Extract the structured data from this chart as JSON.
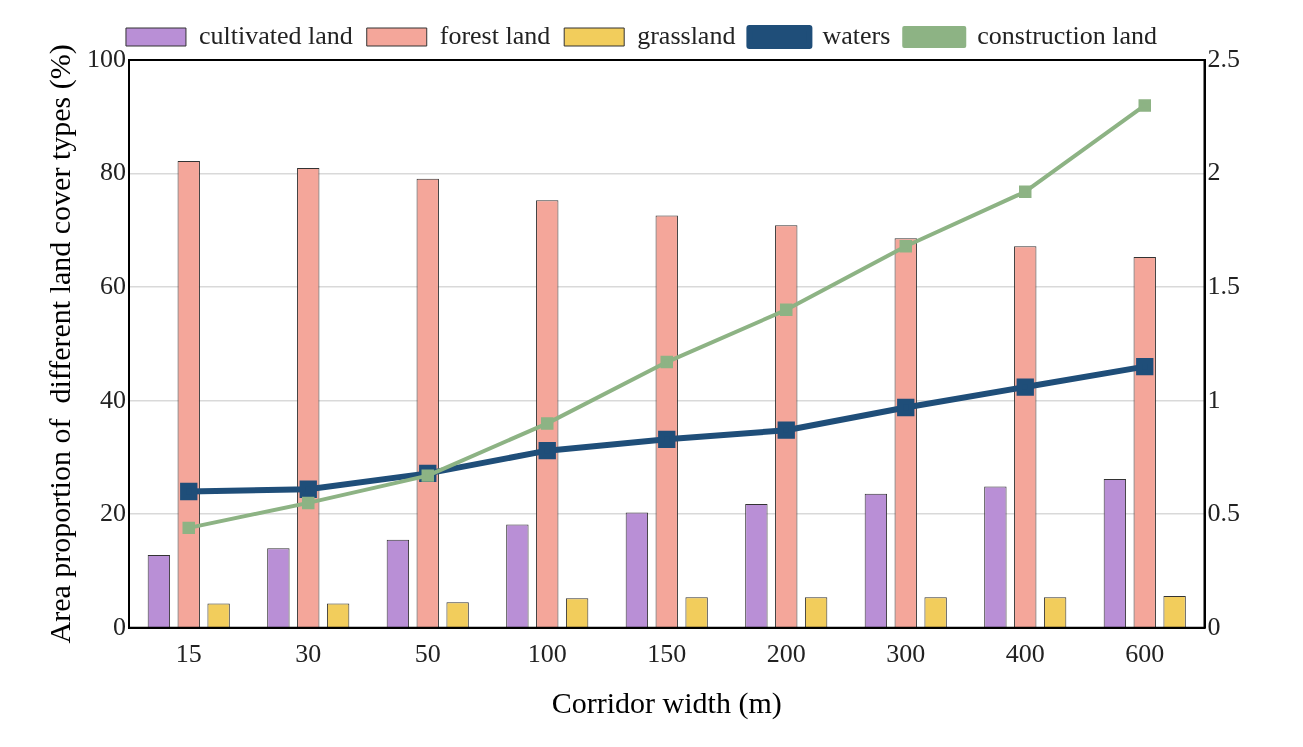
{
  "chart_data": {
    "type": "bar",
    "xlabel": "Corridor width (m)",
    "ylabel": "Area proportion of  different land cover types (%)",
    "categories": [
      "15",
      "30",
      "50",
      "100",
      "150",
      "200",
      "300",
      "400",
      "600"
    ],
    "series": [
      {
        "name": "cultivated land",
        "color": "#b98fd6",
        "values": [
          12.8,
          14.0,
          15.5,
          18.2,
          20.3,
          21.8,
          23.6,
          24.9,
          26.2
        ]
      },
      {
        "name": "forest land",
        "color": "#f4a69a",
        "values": [
          82.2,
          81.0,
          79.1,
          75.3,
          72.6,
          70.9,
          68.6,
          67.2,
          65.3
        ]
      },
      {
        "name": "grassland",
        "color": "#f2cd5c",
        "values": [
          4.3,
          4.3,
          4.5,
          5.2,
          5.4,
          5.4,
          5.4,
          5.4,
          5.6
        ]
      },
      {
        "name": "waters",
        "type": "line",
        "axis": "y2",
        "color": "#1f4e79",
        "values": [
          0.6,
          0.61,
          0.68,
          0.78,
          0.83,
          0.87,
          0.97,
          1.06,
          1.15
        ]
      },
      {
        "name": "construction land",
        "type": "line",
        "axis": "y2",
        "color": "#8db384",
        "values": [
          0.44,
          0.55,
          0.67,
          0.9,
          1.17,
          1.4,
          1.68,
          1.92,
          2.3
        ]
      }
    ],
    "ylim": [
      0,
      100
    ],
    "yticks": [
      0,
      20,
      40,
      60,
      80,
      100
    ],
    "y2lim": [
      0,
      2.5
    ],
    "y2ticks": [
      0,
      0.5,
      1,
      1.5,
      2,
      2.5
    ],
    "grid": "y",
    "legend": "top",
    "marker": "square",
    "line_style": "solid"
  }
}
